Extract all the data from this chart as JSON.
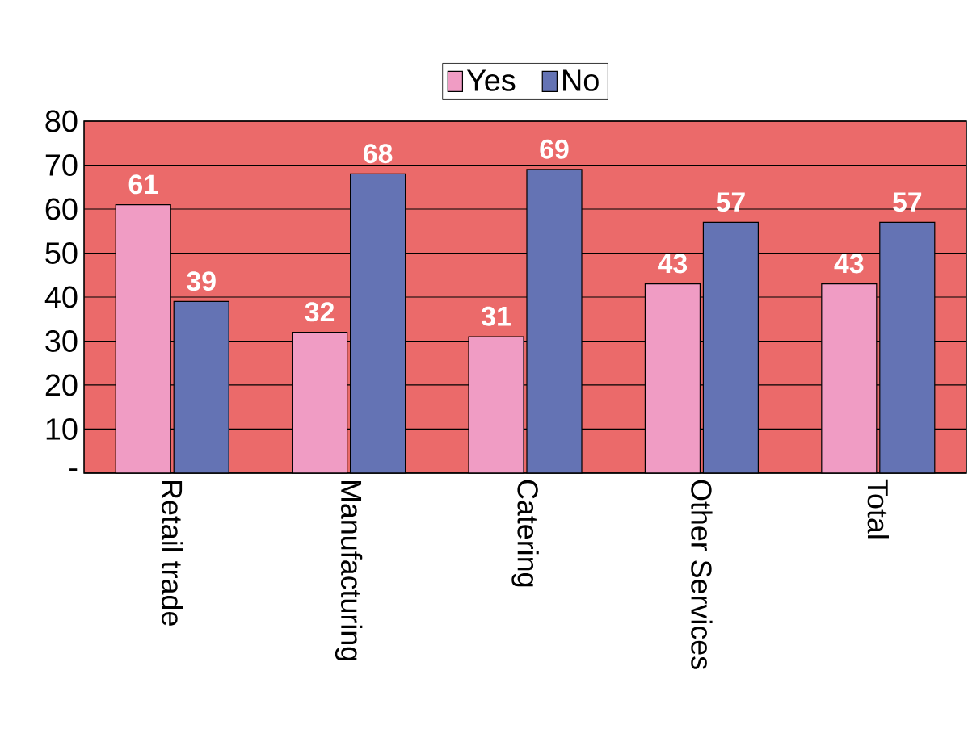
{
  "chart_data": {
    "type": "bar",
    "categories": [
      "Retail trade",
      "Manufacturing",
      "Catering",
      "Other Services",
      "Total"
    ],
    "series": [
      {
        "name": "Yes",
        "color": "#f09cc4",
        "values": [
          61,
          32,
          31,
          43,
          43
        ]
      },
      {
        "name": "No",
        "color": "#6473b4",
        "values": [
          39,
          68,
          69,
          57,
          57
        ]
      }
    ],
    "ylim": [
      0,
      80
    ],
    "yticks": [
      {
        "value": 0,
        "label": "-"
      },
      10,
      20,
      30,
      40,
      50,
      60,
      70,
      80
    ],
    "grid": "y",
    "legend": "top",
    "data_labels": true
  }
}
